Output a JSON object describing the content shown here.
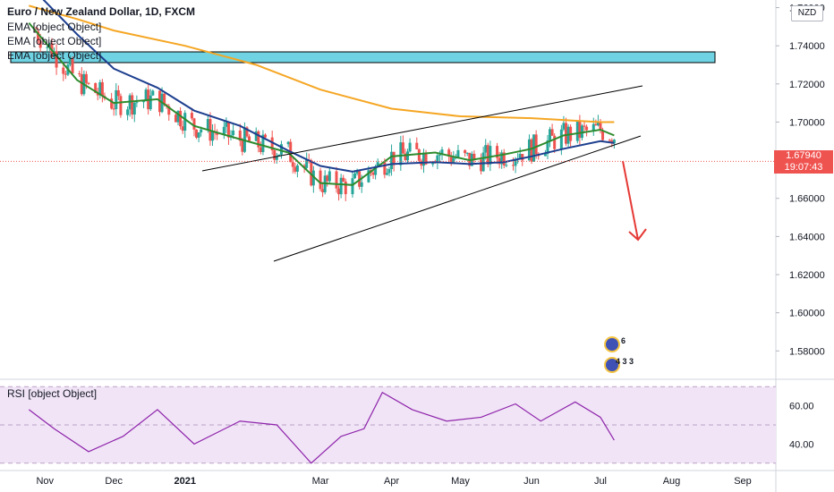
{
  "title": "Euro / New Zealand Dollar, 1D, FXCM",
  "legend": [
    "EMA [object Object]",
    "EMA [object Object]",
    "EMA [object Object]"
  ],
  "rsi_label": "RSI [object Object]",
  "currency": "NZD",
  "last_price": "1.67940",
  "countdown": "19:07:43",
  "badge_top": "6",
  "badge_bottom": "4 3 3",
  "colors": {
    "up": "#26a69a",
    "down": "#ef5350",
    "ema_fast": "#2e8b2e",
    "ema_mid": "#1e3f8f",
    "ema_slow": "#f5a623",
    "zone": "#6fd3e3",
    "rsi_line": "#8e24aa",
    "rsi_band": "#f1e4f7"
  },
  "chart_data": [
    {
      "type": "line",
      "title": "Euro / New Zealand Dollar, 1D, FXCM",
      "xlabel": "",
      "ylabel": "",
      "x_ticks": [
        "Nov",
        "Dec",
        "2021",
        "Mar",
        "Apr",
        "May",
        "Jun",
        "Jul",
        "Aug",
        "Sep"
      ],
      "y_ticks": [
        "1.58000",
        "1.60000",
        "1.62000",
        "1.64000",
        "1.66000",
        "1.68000",
        "1.70000",
        "1.72000",
        "1.74000",
        "1.76000"
      ],
      "ylim": [
        1.567,
        1.764
      ],
      "series": [
        {
          "name": "EMA",
          "x": [
            "2020-10-25",
            "2020-11-15",
            "2020-12-01",
            "2020-12-20",
            "2021-01-05",
            "2021-01-25",
            "2021-02-15",
            "2021-03-01",
            "2021-03-15",
            "2021-04-01",
            "2021-04-20",
            "2021-05-05",
            "2021-05-20",
            "2021-06-01",
            "2021-06-15",
            "2021-07-01",
            "2021-07-07"
          ],
          "values": [
            1.752,
            1.722,
            1.71,
            1.712,
            1.698,
            1.691,
            1.684,
            1.668,
            1.667,
            1.682,
            1.684,
            1.68,
            1.683,
            1.686,
            1.693,
            1.696,
            1.693
          ]
        },
        {
          "name": "EMA",
          "x": [
            "2020-10-25",
            "2020-11-15",
            "2020-12-01",
            "2020-12-20",
            "2021-01-05",
            "2021-01-25",
            "2021-02-15",
            "2021-03-01",
            "2021-03-15",
            "2021-04-01",
            "2021-04-20",
            "2021-05-05",
            "2021-05-20",
            "2021-06-01",
            "2021-06-15",
            "2021-07-01",
            "2021-07-07"
          ],
          "values": [
            1.772,
            1.746,
            1.728,
            1.718,
            1.706,
            1.698,
            1.685,
            1.677,
            1.674,
            1.678,
            1.679,
            1.678,
            1.679,
            1.682,
            1.686,
            1.69,
            1.689
          ]
        },
        {
          "name": "EMA",
          "x": [
            "2020-10-25",
            "2020-11-15",
            "2020-12-01",
            "2021-01-01",
            "2021-02-01",
            "2021-03-01",
            "2021-04-01",
            "2021-05-01",
            "2021-06-01",
            "2021-07-01",
            "2021-07-07"
          ],
          "values": [
            1.761,
            1.754,
            1.748,
            1.74,
            1.73,
            1.717,
            1.707,
            1.703,
            1.702,
            1.7,
            1.7
          ]
        }
      ]
    },
    {
      "type": "line",
      "title": "RSI [object Object]",
      "y_ticks": [
        "40.00",
        "60.00"
      ],
      "ylim": [
        28,
        72
      ],
      "band": [
        30,
        70
      ],
      "series": [
        {
          "name": "RSI",
          "x": [
            "2020-10-25",
            "2020-11-05",
            "2020-11-20",
            "2020-12-05",
            "2020-12-20",
            "2021-01-05",
            "2021-01-25",
            "2021-02-10",
            "2021-02-25",
            "2021-03-10",
            "2021-03-20",
            "2021-03-28",
            "2021-04-10",
            "2021-04-25",
            "2021-05-10",
            "2021-05-25",
            "2021-06-05",
            "2021-06-20",
            "2021-07-01",
            "2021-07-07"
          ],
          "values": [
            58,
            48,
            36,
            44,
            58,
            40,
            52,
            50,
            30,
            44,
            48,
            67,
            58,
            52,
            54,
            61,
            52,
            62,
            54,
            42
          ]
        }
      ]
    }
  ]
}
